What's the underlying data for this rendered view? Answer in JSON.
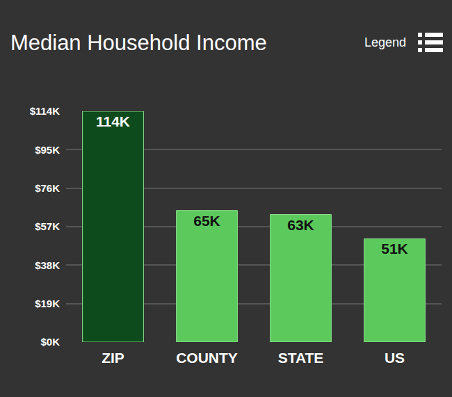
{
  "chart_data": {
    "type": "bar",
    "title": "Median Household Income",
    "annotations": [
      "Legend"
    ],
    "categories": [
      "ZIP",
      "COUNTY",
      "STATE",
      "US"
    ],
    "values": [
      114,
      65,
      63,
      51
    ],
    "value_labels": [
      "114K",
      "65K",
      "63K",
      "51K"
    ],
    "colors": [
      "#0d4a1c",
      "#5cc95c",
      "#5cc95c",
      "#5cc95c"
    ],
    "data_labels": true,
    "ylim": [
      0,
      114
    ],
    "yticks": [
      {
        "value": 0,
        "label": "$0K"
      },
      {
        "value": 19,
        "label": "$19K"
      },
      {
        "value": 38,
        "label": "$38K"
      },
      {
        "value": 57,
        "label": "$57K"
      },
      {
        "value": 76,
        "label": "$76K"
      },
      {
        "value": 95,
        "label": "$95K"
      },
      {
        "value": 114,
        "label": "$114K"
      }
    ],
    "grid": true
  }
}
